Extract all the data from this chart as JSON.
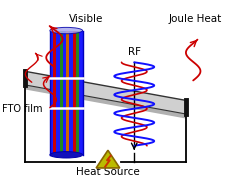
{
  "bg_color": "#ffffff",
  "labels": {
    "visible": "Visible",
    "rf": "RF",
    "joule": "Joule Heat",
    "fto": "FTO film",
    "heat": "Heat Source"
  },
  "plate_color": "#d0d0d0",
  "plate_edge_color": "#111111",
  "rf_blue": "#1111ff",
  "rf_red": "#cc0000",
  "heat_yellow": "#bbbb00",
  "cyl_colors": [
    "#1a1aff",
    "#cc0000",
    "#1a1aff",
    "#228822",
    "#1a1aff",
    "#cc6600",
    "#1a1aff",
    "#cc0000",
    "#228822",
    "#1a1aff"
  ]
}
